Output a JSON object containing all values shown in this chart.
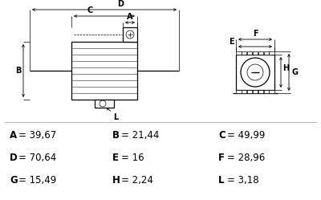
{
  "bg_color": "#ffffff",
  "line_color": "#000000",
  "text_color": "#000000",
  "measurements": [
    {
      "label": "A",
      "value": "39,67"
    },
    {
      "label": "B",
      "value": "21,44"
    },
    {
      "label": "C",
      "value": "49,99"
    },
    {
      "label": "D",
      "value": "70,64"
    },
    {
      "label": "E",
      "value": "16"
    },
    {
      "label": "F",
      "value": "28,96"
    },
    {
      "label": "G",
      "value": "15,49"
    },
    {
      "label": "H",
      "value": "2,24"
    },
    {
      "label": "L",
      "value": "3,18"
    }
  ],
  "fig_width": 4.0,
  "fig_height": 2.49,
  "dpi": 100
}
